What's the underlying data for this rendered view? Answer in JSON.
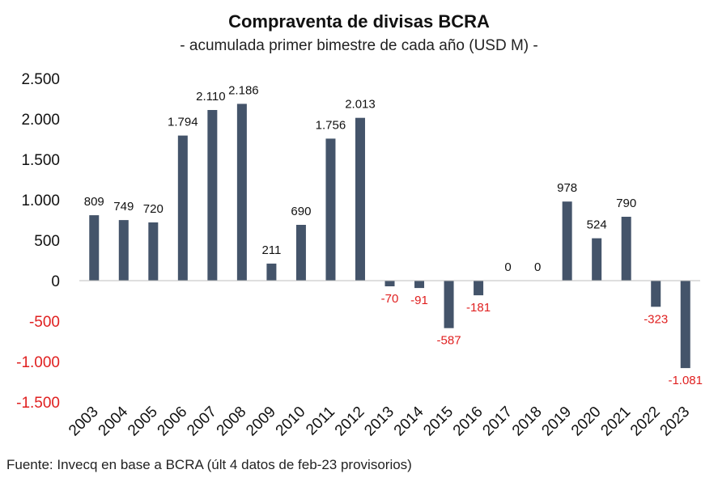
{
  "title": "Compraventa de divisas BCRA",
  "subtitle": "- acumulada primer bimestre de cada año (USD M) -",
  "source": "Fuente: Invecq en base a BCRA (últ 4 datos de feb-23 provisorios)",
  "colors": {
    "bar": "#44546a",
    "positive_label": "#111111",
    "negative_label": "#e02020",
    "axis": "#bfbfbf"
  },
  "chart_data": {
    "type": "bar",
    "categories": [
      "2003",
      "2004",
      "2005",
      "2006",
      "2007",
      "2008",
      "2009",
      "2010",
      "2011",
      "2012",
      "2013",
      "2014",
      "2015",
      "2016",
      "2017",
      "2018",
      "2019",
      "2020",
      "2021",
      "2022",
      "2023"
    ],
    "values": [
      809,
      749,
      720,
      1794,
      2110,
      2186,
      211,
      690,
      1756,
      2013,
      -70,
      -91,
      -587,
      -181,
      0,
      0,
      978,
      524,
      790,
      -323,
      -1081
    ],
    "data_labels": [
      "809",
      "749",
      "720",
      "1.794",
      "2.110",
      "2.186",
      "211",
      "690",
      "1.756",
      "2.013",
      "-70",
      "-91",
      "-587",
      "-181",
      "0",
      "0",
      "978",
      "524",
      "790",
      "-323",
      "-1.081"
    ],
    "yticks": [
      2500,
      2000,
      1500,
      1000,
      500,
      0,
      -500,
      -1000,
      -1500
    ],
    "ytick_labels": [
      "2.500",
      "2.000",
      "1.500",
      "1.000",
      "500",
      "0",
      "-500",
      "-1.000",
      "-1.500"
    ],
    "ylim": [
      -1500,
      2500
    ],
    "grid": false,
    "legend": "none"
  }
}
